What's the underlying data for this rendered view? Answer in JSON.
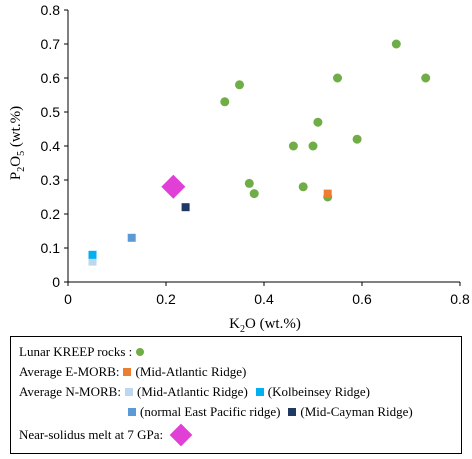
{
  "chart_data": {
    "type": "scatter",
    "xlabel_main": "K",
    "xlabel_sub": "2",
    "xlabel_rest": "O (wt.%)",
    "ylabel_main": "P",
    "ylabel_sub1": "2",
    "ylabel_mid": "O",
    "ylabel_sub2": "5",
    "ylabel_rest": " (wt.%)",
    "xlim": [
      0,
      0.8
    ],
    "ylim": [
      0,
      0.8
    ],
    "xticks": [
      "0",
      "0.2",
      "0.4",
      "0.6",
      "0.8"
    ],
    "yticks": [
      "0",
      "0.1",
      "0.2",
      "0.3",
      "0.4",
      "0.5",
      "0.6",
      "0.7",
      "0.8"
    ],
    "series": [
      {
        "key": "kreep",
        "marker": "circle",
        "color": "#70ad47",
        "points": [
          [
            0.32,
            0.53
          ],
          [
            0.35,
            0.58
          ],
          [
            0.37,
            0.29
          ],
          [
            0.38,
            0.26
          ],
          [
            0.46,
            0.4
          ],
          [
            0.48,
            0.28
          ],
          [
            0.5,
            0.4
          ],
          [
            0.51,
            0.47
          ],
          [
            0.53,
            0.25
          ],
          [
            0.55,
            0.6
          ],
          [
            0.59,
            0.42
          ],
          [
            0.67,
            0.7
          ],
          [
            0.73,
            0.6
          ]
        ]
      },
      {
        "key": "emorb_mar",
        "marker": "square",
        "color": "#ed7d31",
        "points": [
          [
            0.53,
            0.26
          ]
        ]
      },
      {
        "key": "nmorb_mar",
        "marker": "square",
        "color": "#bdd7ee",
        "points": [
          [
            0.05,
            0.06
          ]
        ]
      },
      {
        "key": "nmorb_kolb",
        "marker": "square",
        "color": "#00b0f0",
        "points": [
          [
            0.05,
            0.08
          ]
        ]
      },
      {
        "key": "nmorb_epr",
        "marker": "square",
        "color": "#5b9bd5",
        "points": [
          [
            0.13,
            0.13
          ]
        ]
      },
      {
        "key": "nmorb_cayman",
        "marker": "square",
        "color": "#1f3864",
        "points": [
          [
            0.24,
            0.22
          ]
        ]
      },
      {
        "key": "melt",
        "marker": "diamond",
        "color": "#e040d6",
        "points": [
          [
            0.215,
            0.28
          ]
        ]
      }
    ]
  },
  "legend": {
    "kreep_label": "Lunar KREEP rocks :",
    "emorb_label": "Average E-MORB:",
    "emorb_mar": "(Mid-Atlantic Ridge)",
    "nmorb_label": "Average N-MORB:",
    "nmorb_mar": "(Mid-Atlantic Ridge)",
    "nmorb_kolb": "(Kolbeinsey Ridge)",
    "nmorb_epr": "(normal East Pacific ridge)",
    "nmorb_cayman": "(Mid-Cayman Ridge)",
    "melt_label": "Near-solidus melt at 7 GPa:"
  }
}
